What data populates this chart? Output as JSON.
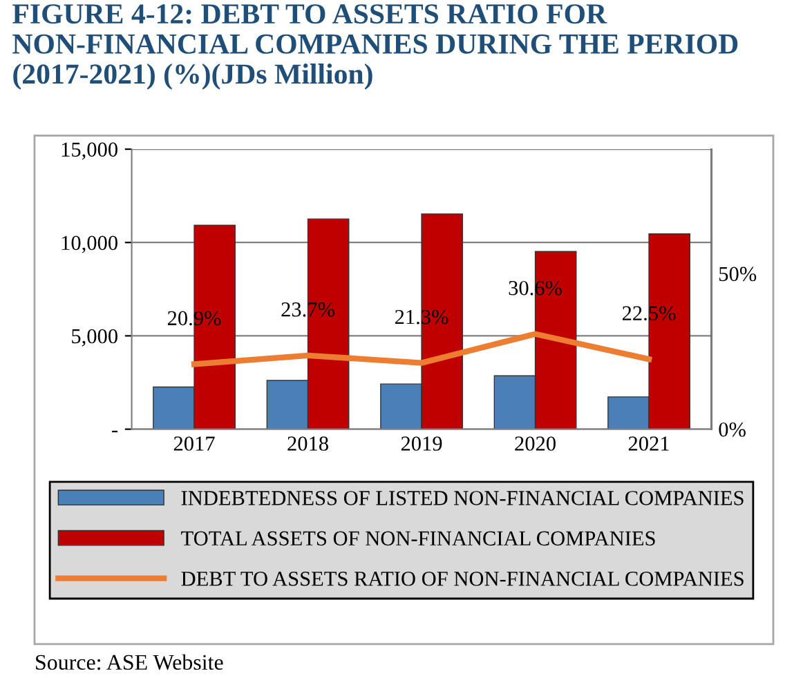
{
  "chart_data": {
    "type": "bar",
    "title": "FIGURE 4-12: DEBT TO ASSETS RATIO FOR NON-FINANCIAL COMPANIES DURING THE PERIOD (2017-2021) (%)(JDs Million)",
    "categories": [
      "2017",
      "2018",
      "2019",
      "2020",
      "2021"
    ],
    "series": [
      {
        "name": "INDEBTEDNESS OF LISTED NON-FINANCIAL COMPANIES",
        "color": "#4a7fb8",
        "values": [
          2260,
          2610,
          2420,
          2860,
          1730
        ]
      },
      {
        "name": "TOTAL ASSETS OF NON-FINANCIAL COMPANIES",
        "color": "#c00000",
        "values": [
          10930,
          11260,
          11530,
          9520,
          10460
        ]
      },
      {
        "name": "DEBT TO ASSETS RATIO OF NON-FINANCIAL COMPANIES",
        "type": "line",
        "axis": "y2",
        "color": "#ed7d31",
        "values": [
          20.9,
          23.7,
          21.3,
          30.6,
          22.5
        ],
        "value_labels": [
          "20.9%",
          "23.7%",
          "21.3%",
          "30.6%",
          "22.5%"
        ]
      }
    ],
    "ylim": [
      0,
      15000
    ],
    "yticks": [
      {
        "value": 0,
        "label": "-"
      },
      {
        "value": 5000,
        "label": "5,000"
      },
      {
        "value": 10000,
        "label": "10,000"
      },
      {
        "value": 15000,
        "label": "15,000"
      }
    ],
    "y2lim": [
      0,
      90
    ],
    "y2ticks": [
      {
        "value": 0,
        "label": "0%"
      },
      {
        "value": 50,
        "label": "50%"
      }
    ],
    "grid": "y",
    "legend": "bottom",
    "marker": "none",
    "line_style": "solid",
    "annotations": [
      "Source: ASE Website"
    ]
  }
}
